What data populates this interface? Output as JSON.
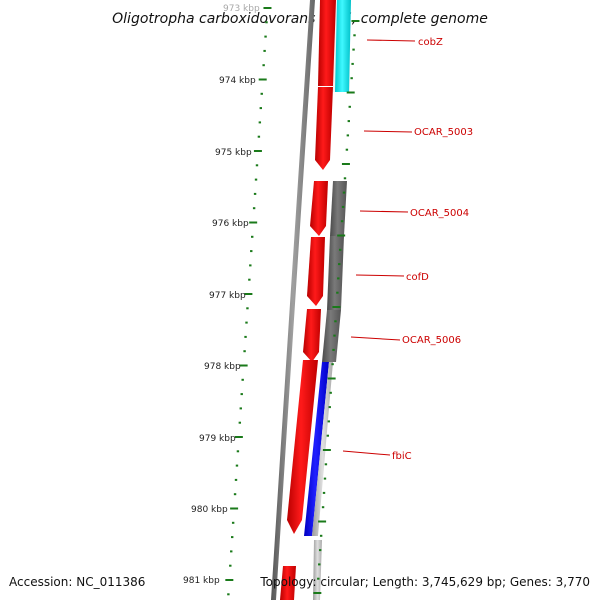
{
  "title": "Oligotropha carboxidovorans OM5, complete genome",
  "accession_text": "Accession: NC_011386",
  "topology_text": "Topology: circular; Length: 3,745,629 bp; Genes: 3,770",
  "kbp_labels": [
    "973 kbp",
    "974 kbp",
    "975 kbp",
    "976 kbp",
    "977 kbp",
    "978 kbp",
    "979 kbp",
    "980 kbp",
    "981 kbp"
  ],
  "genes": [
    {
      "name": "cobZ",
      "color": "#00e5ee",
      "track": "outer"
    },
    {
      "name": "OCAR_5003",
      "color": "#ee0000",
      "track": "outer"
    },
    {
      "name": "OCAR_5004",
      "color": "#666666",
      "track": "inner"
    },
    {
      "name": "cofD",
      "color": "#666666",
      "track": "inner"
    },
    {
      "name": "OCAR_5006",
      "color": "#666666",
      "track": "inner"
    },
    {
      "name": "fbiC",
      "color": "#0000ee",
      "track": "inner"
    }
  ],
  "colors": {
    "forward_gene": "#ee0000",
    "reverse_gene": "#666666",
    "highlight_cyan": "#00e5ee",
    "highlight_blue": "#0000ee",
    "tick": "#1a7a1a",
    "label_line": "#cc0000"
  }
}
